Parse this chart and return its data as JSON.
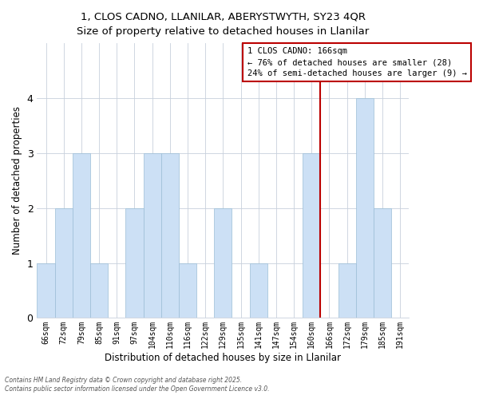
{
  "title_line1": "1, CLOS CADNO, LLANILAR, ABERYSTWYTH, SY23 4QR",
  "title_line2": "Size of property relative to detached houses in Llanilar",
  "xlabel": "Distribution of detached houses by size in Llanilar",
  "ylabel": "Number of detached properties",
  "categories": [
    "66sqm",
    "72sqm",
    "79sqm",
    "85sqm",
    "91sqm",
    "97sqm",
    "104sqm",
    "110sqm",
    "116sqm",
    "122sqm",
    "129sqm",
    "135sqm",
    "141sqm",
    "147sqm",
    "154sqm",
    "160sqm",
    "166sqm",
    "172sqm",
    "179sqm",
    "185sqm",
    "191sqm"
  ],
  "values": [
    1,
    2,
    3,
    1,
    0,
    2,
    3,
    3,
    1,
    0,
    2,
    0,
    1,
    0,
    0,
    3,
    0,
    1,
    4,
    2,
    0
  ],
  "bar_color": "#cce0f5",
  "bar_edge_color": "#9bbdd6",
  "highlight_index": 16,
  "highlight_color": "#bb0000",
  "ylim": [
    0,
    5
  ],
  "yticks": [
    0,
    1,
    2,
    3,
    4,
    5
  ],
  "annotation_title": "1 CLOS CADNO: 166sqm",
  "annotation_line1": "← 76% of detached houses are smaller (28)",
  "annotation_line2": "24% of semi-detached houses are larger (9) →",
  "footnote1": "Contains HM Land Registry data © Crown copyright and database right 2025.",
  "footnote2": "Contains public sector information licensed under the Open Government Licence v3.0.",
  "background_color": "#ffffff",
  "grid_color": "#c8d0dc"
}
